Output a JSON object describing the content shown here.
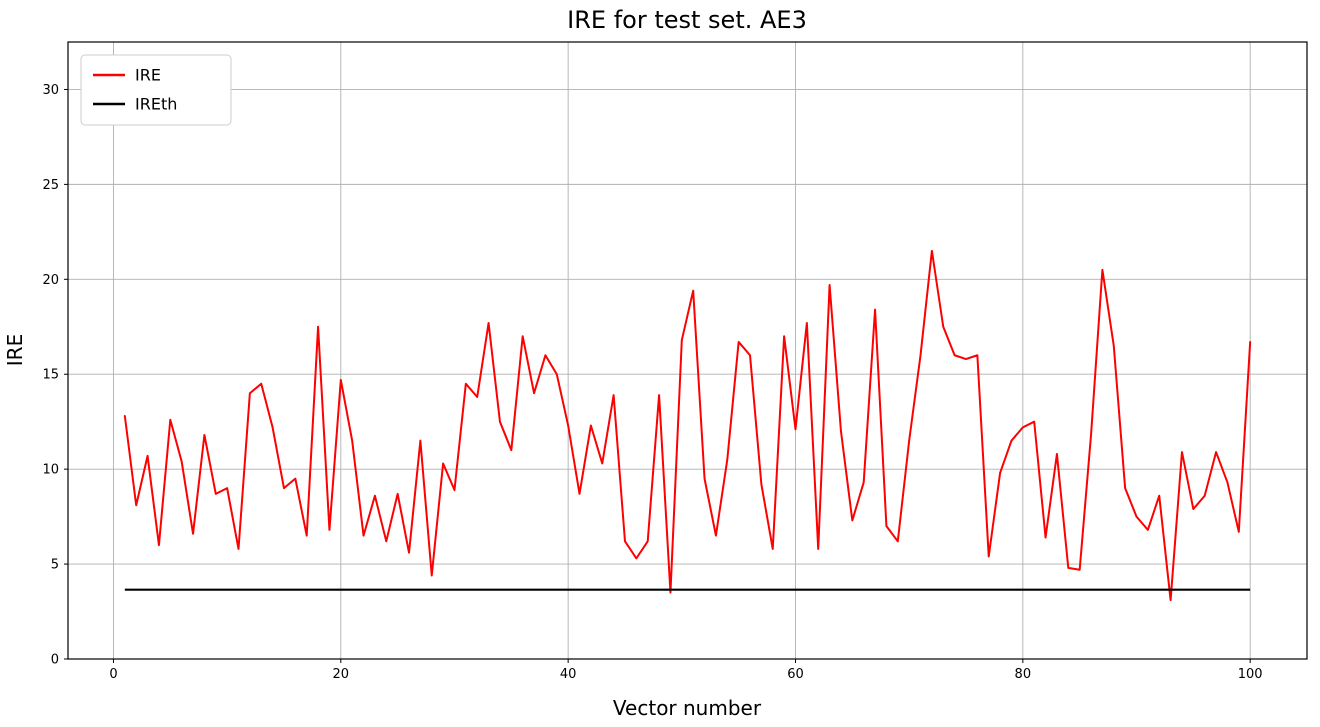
{
  "chart_data": {
    "type": "line",
    "title": "IRE for test set. AE3",
    "xlabel": "Vector number",
    "ylabel": "IRE",
    "xlim": [
      -4,
      105
    ],
    "ylim": [
      0,
      32.5
    ],
    "x_ticks": [
      0,
      20,
      40,
      60,
      80,
      100
    ],
    "y_ticks": [
      0,
      5,
      10,
      15,
      20,
      25,
      30
    ],
    "grid": true,
    "grid_color": "#b0b0b0",
    "legend_position": "upper-left",
    "x_start": 1,
    "series": [
      {
        "name": "IRE",
        "color": "#ff0000",
        "values": [
          12.8,
          8.1,
          10.7,
          6.0,
          12.6,
          10.4,
          6.6,
          11.8,
          8.7,
          9.0,
          5.8,
          14.0,
          14.5,
          12.2,
          9.0,
          9.5,
          6.5,
          17.5,
          6.8,
          14.7,
          11.5,
          6.5,
          8.6,
          6.2,
          8.7,
          5.6,
          11.5,
          4.4,
          10.3,
          8.9,
          14.5,
          13.8,
          17.7,
          12.5,
          11.0,
          17.0,
          14.0,
          16.0,
          15.0,
          12.3,
          8.7,
          12.3,
          10.3,
          13.9,
          6.2,
          5.3,
          6.2,
          13.9,
          3.5,
          16.8,
          19.4,
          9.5,
          6.5,
          10.5,
          16.7,
          16.0,
          9.2,
          5.8,
          17.0,
          12.1,
          17.7,
          5.8,
          19.7,
          12.0,
          7.3,
          9.3,
          18.4,
          7.0,
          6.2,
          11.5,
          16.0,
          21.5,
          17.5,
          16.0,
          15.8,
          16.0,
          5.4,
          9.8,
          11.5,
          12.2,
          12.5,
          6.4,
          10.8,
          4.8,
          4.7,
          11.8,
          20.5,
          16.5,
          9.0,
          7.5,
          6.8,
          8.6,
          3.1,
          10.9,
          7.9,
          8.6,
          10.9,
          9.3,
          6.7,
          16.7
        ]
      },
      {
        "name": "IREth",
        "color": "#000000",
        "constant": 3.65
      }
    ]
  }
}
